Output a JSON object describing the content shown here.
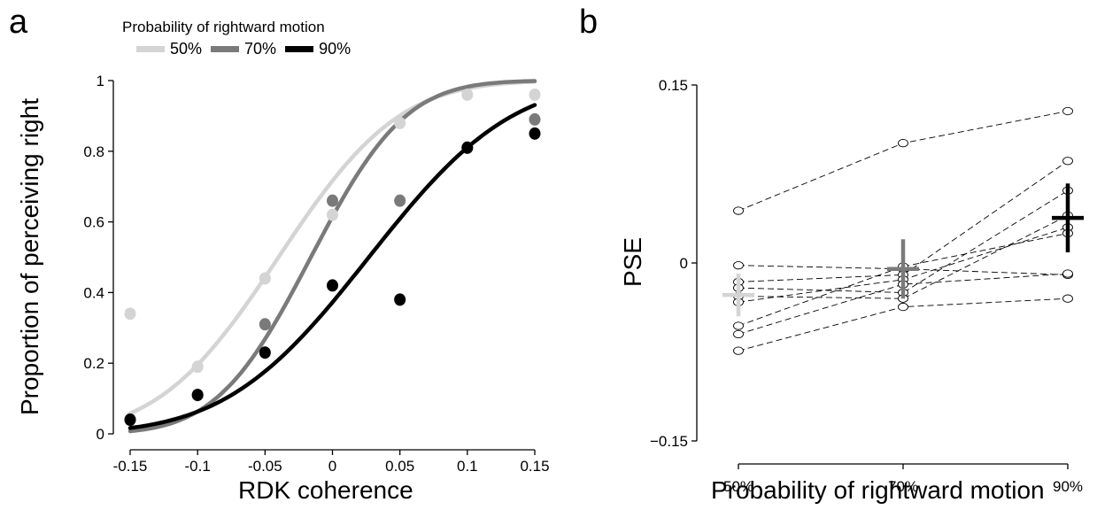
{
  "panels": {
    "a_letter": "a",
    "b_letter": "b"
  },
  "legend": {
    "title": "Probability of rightward motion",
    "items": [
      {
        "label": "50%",
        "color": "#d4d4d4"
      },
      {
        "label": "70%",
        "color": "#7a7a7a"
      },
      {
        "label": "90%",
        "color": "#000000"
      }
    ]
  },
  "chart_data": [
    {
      "type": "scatter",
      "xlabel": "RDK coherence",
      "ylabel": "Proportion of perceiving right",
      "xlim": [
        -0.15,
        0.15
      ],
      "ylim": [
        0,
        1
      ],
      "xticks": [
        "-0.15",
        "-0.1",
        "-0.05",
        "0",
        "0.05",
        "0.1",
        "0.15"
      ],
      "xtick_values": [
        -0.15,
        -0.1,
        -0.05,
        0,
        0.05,
        0.1,
        0.15
      ],
      "yticks": [
        "0",
        "0.2",
        "0.4",
        "0.6",
        "0.8",
        "1"
      ],
      "ytick_values": [
        0,
        0.2,
        0.4,
        0.6,
        0.8,
        1
      ],
      "x": [
        -0.15,
        -0.1,
        -0.05,
        0,
        0.05,
        0.1,
        0.15
      ],
      "series": [
        {
          "name": "50%",
          "color": "#d4d4d4",
          "values": [
            0.34,
            0.19,
            0.44,
            0.62,
            0.88,
            0.96,
            0.96
          ],
          "fit": {
            "mu": -0.04,
            "sigma": 0.07
          }
        },
        {
          "name": "70%",
          "color": "#7a7a7a",
          "values": [
            0.04,
            0.11,
            0.31,
            0.66,
            0.66,
            0.81,
            0.89
          ],
          "fit": {
            "mu": -0.016,
            "sigma": 0.055
          }
        },
        {
          "name": "90%",
          "color": "#000000",
          "values": [
            0.04,
            0.11,
            0.23,
            0.42,
            0.38,
            0.81,
            0.85
          ],
          "fit": {
            "mu": 0.027,
            "sigma": 0.083
          }
        }
      ]
    },
    {
      "type": "scatter",
      "xlabel": "Probability of rightward motion",
      "ylabel": "PSE",
      "categories": [
        "50%",
        "70%",
        "90%"
      ],
      "ylim": [
        -0.15,
        0.15
      ],
      "yticks": [
        "0.15",
        "0",
        "−0.15"
      ],
      "ytick_values": [
        0.15,
        0,
        -0.15
      ],
      "subjects": [
        [
          0.044,
          0.101,
          0.128
        ],
        [
          -0.002,
          -0.005,
          -0.01
        ],
        [
          -0.016,
          -0.01,
          0.086
        ],
        [
          -0.021,
          -0.025,
          0.061
        ],
        [
          -0.028,
          -0.03,
          0.04
        ],
        [
          -0.033,
          -0.014,
          0.03
        ],
        [
          -0.053,
          -0.003,
          0.025
        ],
        [
          -0.06,
          -0.018,
          -0.009
        ],
        [
          -0.074,
          -0.037,
          -0.03
        ]
      ],
      "means": [
        {
          "category": "50%",
          "mean": -0.027,
          "err": 0.018,
          "color": "#d4d4d4"
        },
        {
          "category": "70%",
          "mean": -0.005,
          "err": 0.025,
          "color": "#7a7a7a"
        },
        {
          "category": "90%",
          "mean": 0.038,
          "err": 0.029,
          "color": "#000000"
        }
      ]
    }
  ]
}
